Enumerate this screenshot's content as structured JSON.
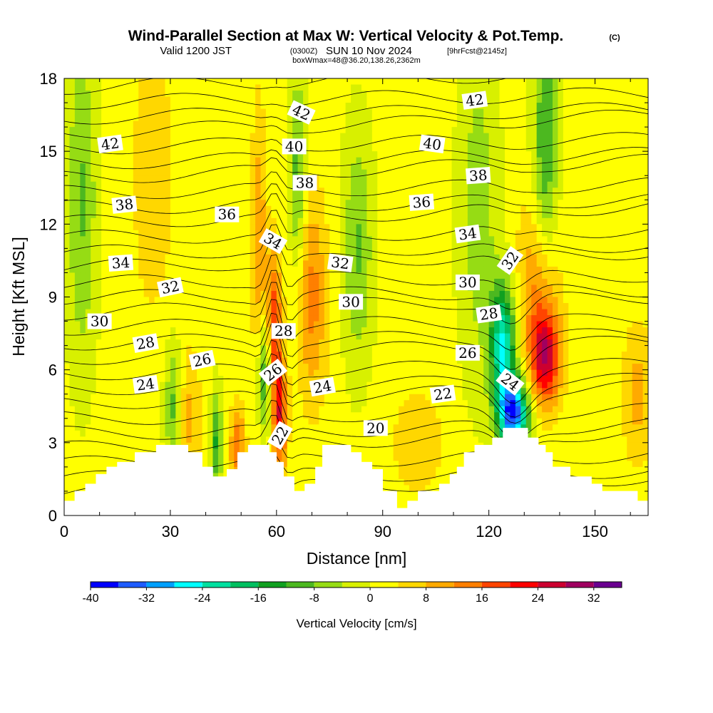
{
  "title": {
    "main": "Wind-Parallel Section at Max W: Vertical Velocity & Pot.Temp.",
    "copyright": "(C)",
    "valid_prefix": "Valid 1200 JST",
    "valid_zulu": "(0300Z)",
    "valid_date": "SUN 10 Nov 2024",
    "forecast": "[9hrFcst@2145z]",
    "box_info": "boxWmax=48@36.20,138.26,2362m"
  },
  "chart_data": {
    "type": "heatmap",
    "title": "Wind-Parallel Section at Max W: Vertical Velocity & Pot.Temp.",
    "xlabel": "Distance [nm]",
    "ylabel": "Height [Kft MSL]",
    "xlim": [
      0,
      165
    ],
    "ylim": [
      0,
      18
    ],
    "xticks": [
      0,
      30,
      60,
      90,
      120,
      150
    ],
    "yticks": [
      0,
      3,
      6,
      9,
      12,
      15,
      18
    ],
    "grid": false,
    "colorbar": {
      "label": "Vertical Velocity [cm/s]",
      "ticks": [
        -40,
        -32,
        -24,
        -16,
        -8,
        0,
        8,
        16,
        24,
        32
      ],
      "levels": [
        -40,
        -36,
        -32,
        -28,
        -24,
        -20,
        -16,
        -12,
        -8,
        -4,
        0,
        4,
        8,
        12,
        16,
        20,
        24,
        28,
        32,
        36
      ],
      "colors": [
        "#0000ff",
        "#1e5cff",
        "#00a0ff",
        "#00ffff",
        "#00e0a0",
        "#00c060",
        "#10a020",
        "#4cb820",
        "#96dc14",
        "#d8f000",
        "#ffff00",
        "#ffd700",
        "#ffaa00",
        "#ff7f00",
        "#ff4400",
        "#ff0000",
        "#cc0030",
        "#a00060",
        "#6a0090"
      ]
    },
    "vertical_velocity_features": [
      {
        "x": 59,
        "y": 7.5,
        "w_cm_s": 22,
        "sx": 1.6,
        "sy": 2.2
      },
      {
        "x": 61,
        "y": 4.0,
        "w_cm_s": 20,
        "sx": 1.4,
        "sy": 1.6
      },
      {
        "x": 57,
        "y": 6.0,
        "w_cm_s": -20,
        "sx": 1.6,
        "sy": 1.8
      },
      {
        "x": 127,
        "y": 4.2,
        "w_cm_s": -36,
        "sx": 3.0,
        "sy": 1.0
      },
      {
        "x": 124,
        "y": 7.0,
        "w_cm_s": -26,
        "sx": 2.5,
        "sy": 1.8
      },
      {
        "x": 136,
        "y": 6.5,
        "w_cm_s": 24,
        "sx": 3.0,
        "sy": 1.4
      },
      {
        "x": 134,
        "y": 9.5,
        "w_cm_s": 12,
        "sx": 4.0,
        "sy": 2.5
      },
      {
        "x": 70,
        "y": 9.0,
        "w_cm_s": 12,
        "sx": 3.0,
        "sy": 3.0
      },
      {
        "x": 49,
        "y": 2.8,
        "w_cm_s": 14,
        "sx": 1.5,
        "sy": 1.2
      },
      {
        "x": 35,
        "y": 4.0,
        "w_cm_s": 8,
        "sx": 2.5,
        "sy": 2.0
      },
      {
        "x": 31,
        "y": 4.5,
        "w_cm_s": -12,
        "sx": 1.8,
        "sy": 1.8
      },
      {
        "x": 43,
        "y": 3.0,
        "w_cm_s": -14,
        "sx": 1.2,
        "sy": 1.5
      },
      {
        "x": 83,
        "y": 11.0,
        "w_cm_s": -10,
        "sx": 3.0,
        "sy": 3.5
      },
      {
        "x": 117,
        "y": 12.5,
        "w_cm_s": -8,
        "sx": 4.0,
        "sy": 5.0
      },
      {
        "x": 136,
        "y": 15.0,
        "w_cm_s": -14,
        "sx": 2.5,
        "sy": 4.0
      },
      {
        "x": 5,
        "y": 13.0,
        "w_cm_s": -10,
        "sx": 3.0,
        "sy": 5.0
      },
      {
        "x": 162,
        "y": 5.0,
        "w_cm_s": 8,
        "sx": 3.0,
        "sy": 2.0
      },
      {
        "x": 25,
        "y": 14.0,
        "w_cm_s": 6,
        "sx": 4.0,
        "sy": 4.0
      },
      {
        "x": 100,
        "y": 3.0,
        "w_cm_s": 6,
        "sx": 5.0,
        "sy": 1.5
      },
      {
        "x": 66,
        "y": 14.0,
        "w_cm_s": -12,
        "sx": 1.6,
        "sy": 3.0
      },
      {
        "x": 55,
        "y": 11.0,
        "w_cm_s": 10,
        "sx": 1.5,
        "sy": 4.0
      }
    ],
    "terrain_kft": [
      [
        0,
        0.6
      ],
      [
        3,
        0.6
      ],
      [
        3,
        1.0
      ],
      [
        6,
        1.0
      ],
      [
        6,
        1.3
      ],
      [
        9,
        1.3
      ],
      [
        9,
        1.7
      ],
      [
        12,
        1.7
      ],
      [
        12,
        2.0
      ],
      [
        15,
        2.0
      ],
      [
        15,
        2.2
      ],
      [
        20,
        2.2
      ],
      [
        20,
        2.6
      ],
      [
        26,
        2.6
      ],
      [
        26,
        2.9
      ],
      [
        35,
        2.9
      ],
      [
        35,
        2.6
      ],
      [
        39,
        2.6
      ],
      [
        39,
        2.0
      ],
      [
        42,
        2.0
      ],
      [
        42,
        1.6
      ],
      [
        46,
        1.6
      ],
      [
        46,
        1.9
      ],
      [
        49,
        1.9
      ],
      [
        49,
        2.6
      ],
      [
        52,
        2.6
      ],
      [
        52,
        2.9
      ],
      [
        58,
        2.9
      ],
      [
        58,
        2.6
      ],
      [
        60,
        2.6
      ],
      [
        60,
        2.2
      ],
      [
        62,
        2.2
      ],
      [
        62,
        1.6
      ],
      [
        65,
        1.6
      ],
      [
        65,
        1.0
      ],
      [
        68,
        1.0
      ],
      [
        68,
        1.3
      ],
      [
        71,
        1.3
      ],
      [
        71,
        2.0
      ],
      [
        73,
        2.0
      ],
      [
        73,
        2.9
      ],
      [
        81,
        2.9
      ],
      [
        81,
        2.6
      ],
      [
        84,
        2.6
      ],
      [
        84,
        2.2
      ],
      [
        87,
        2.2
      ],
      [
        87,
        1.9
      ],
      [
        90,
        1.9
      ],
      [
        90,
        1.0
      ],
      [
        94,
        1.0
      ],
      [
        94,
        0.3
      ],
      [
        97,
        0.3
      ],
      [
        97,
        0.6
      ],
      [
        100,
        0.6
      ],
      [
        100,
        1.0
      ],
      [
        106,
        1.0
      ],
      [
        106,
        1.3
      ],
      [
        109,
        1.3
      ],
      [
        109,
        1.7
      ],
      [
        111,
        1.7
      ],
      [
        111,
        2.0
      ],
      [
        113,
        2.0
      ],
      [
        113,
        2.6
      ],
      [
        116,
        2.6
      ],
      [
        116,
        2.9
      ],
      [
        121,
        2.9
      ],
      [
        121,
        3.2
      ],
      [
        124,
        3.2
      ],
      [
        124,
        3.6
      ],
      [
        131,
        3.6
      ],
      [
        131,
        3.2
      ],
      [
        134,
        3.2
      ],
      [
        134,
        2.9
      ],
      [
        136,
        2.9
      ],
      [
        136,
        2.6
      ],
      [
        138,
        2.6
      ],
      [
        138,
        2.0
      ],
      [
        143,
        2.0
      ],
      [
        143,
        1.6
      ],
      [
        149,
        1.6
      ],
      [
        149,
        1.3
      ],
      [
        152,
        1.3
      ],
      [
        152,
        1.0
      ],
      [
        162,
        1.0
      ],
      [
        162,
        0.6
      ],
      [
        165,
        0.6
      ]
    ],
    "theta_contour_labels": [
      {
        "text": "42",
        "x": 13,
        "y": 15.3,
        "angle": -8
      },
      {
        "text": "38",
        "x": 17,
        "y": 12.8,
        "angle": -6
      },
      {
        "text": "34",
        "x": 16,
        "y": 10.4,
        "angle": -4
      },
      {
        "text": "30",
        "x": 10,
        "y": 8.0,
        "angle": 0
      },
      {
        "text": "32",
        "x": 30,
        "y": 9.4,
        "angle": -12
      },
      {
        "text": "28",
        "x": 23,
        "y": 7.1,
        "angle": -10
      },
      {
        "text": "26",
        "x": 39,
        "y": 6.4,
        "angle": -12
      },
      {
        "text": "24",
        "x": 23,
        "y": 5.4,
        "angle": -8
      },
      {
        "text": "36",
        "x": 46,
        "y": 12.4,
        "angle": 0
      },
      {
        "text": "34",
        "x": 59,
        "y": 11.3,
        "angle": 30
      },
      {
        "text": "42",
        "x": 67,
        "y": 16.6,
        "angle": 25
      },
      {
        "text": "40",
        "x": 65,
        "y": 15.2,
        "angle": 0
      },
      {
        "text": "38",
        "x": 68,
        "y": 13.7,
        "angle": 0
      },
      {
        "text": "28",
        "x": 62,
        "y": 7.6,
        "angle": 0
      },
      {
        "text": "26",
        "x": 59,
        "y": 5.9,
        "angle": -38
      },
      {
        "text": "22",
        "x": 61,
        "y": 3.3,
        "angle": -60
      },
      {
        "text": "32",
        "x": 78,
        "y": 10.4,
        "angle": 8
      },
      {
        "text": "30",
        "x": 81,
        "y": 8.8,
        "angle": 0
      },
      {
        "text": "24",
        "x": 73,
        "y": 5.3,
        "angle": -10
      },
      {
        "text": "20",
        "x": 88,
        "y": 3.6,
        "angle": 0
      },
      {
        "text": "42",
        "x": 116,
        "y": 17.1,
        "angle": -8
      },
      {
        "text": "40",
        "x": 104,
        "y": 15.3,
        "angle": 8
      },
      {
        "text": "38",
        "x": 117,
        "y": 14.0,
        "angle": -4
      },
      {
        "text": "36",
        "x": 101,
        "y": 12.9,
        "angle": -4
      },
      {
        "text": "34",
        "x": 114,
        "y": 11.6,
        "angle": -8
      },
      {
        "text": "32",
        "x": 126,
        "y": 10.5,
        "angle": -55
      },
      {
        "text": "30",
        "x": 114,
        "y": 9.6,
        "angle": 0
      },
      {
        "text": "28",
        "x": 120,
        "y": 8.3,
        "angle": -8
      },
      {
        "text": "26",
        "x": 114,
        "y": 6.7,
        "angle": 0
      },
      {
        "text": "24",
        "x": 126,
        "y": 5.5,
        "angle": 38
      },
      {
        "text": "22",
        "x": 107,
        "y": 5.0,
        "angle": -8
      }
    ]
  }
}
